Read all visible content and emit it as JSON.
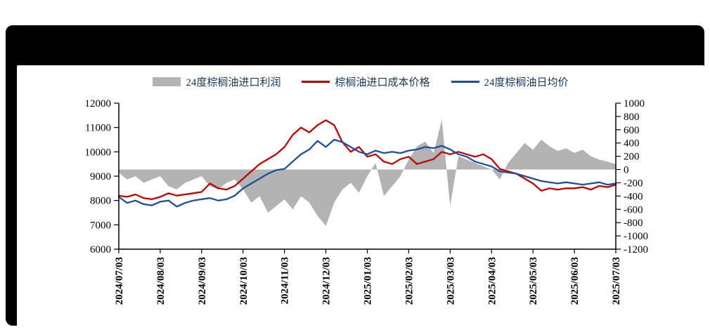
{
  "colors": {
    "profit_gray": "#b3b3b3",
    "cost_red": "#c00000",
    "daily_blue": "#1f4e9b",
    "legend_text": "#17365d",
    "axis": "#000000"
  },
  "legend": [
    {
      "label": "24度棕榈油进口利润",
      "type": "area",
      "color": "#b3b3b3"
    },
    {
      "label": "棕榈油进口成本价格",
      "type": "line",
      "color": "#c00000"
    },
    {
      "label": "24度棕榈油日均价",
      "type": "line",
      "color": "#1f4e9b"
    }
  ],
  "chart_data": {
    "type": "mixed",
    "title": "",
    "x_tick_labels": [
      "2024/07/03",
      "2024/08/03",
      "2024/09/03",
      "2024/10/03",
      "2024/11/03",
      "2024/12/03",
      "2025/01/03",
      "2025/02/03",
      "2025/03/03",
      "2025/04/03",
      "2025/05/03",
      "2025/06/03",
      "2025/07/03"
    ],
    "x_tick_indices": [
      0,
      5,
      10,
      15,
      20,
      25,
      30,
      35,
      40,
      45,
      50,
      55,
      60
    ],
    "axes": {
      "left": {
        "min": 6000,
        "max": 12000,
        "step": 1000
      },
      "right": {
        "min": -1200,
        "max": 1000,
        "step": 200
      }
    },
    "y_left_ticks": [
      12000,
      11000,
      10000,
      9000,
      8000,
      7000,
      6000
    ],
    "y_right_ticks": [
      1000,
      800,
      600,
      400,
      200,
      0,
      -200,
      -400,
      -600,
      -800,
      -1000,
      -1200
    ],
    "grid": false,
    "legend_position": "top-center",
    "series": [
      {
        "name": "24度棕榈油进口利润",
        "type": "area",
        "axis": "right",
        "color": "#b3b3b3",
        "values": [
          -50,
          -150,
          -100,
          -200,
          -150,
          -100,
          -250,
          -300,
          -200,
          -150,
          -100,
          -250,
          -300,
          -200,
          -150,
          -300,
          -500,
          -400,
          -650,
          -550,
          -450,
          -600,
          -400,
          -500,
          -700,
          -850,
          -500,
          -300,
          -200,
          -350,
          -100,
          100,
          -400,
          -250,
          -100,
          150,
          350,
          420,
          250,
          750,
          -550,
          200,
          150,
          100,
          50,
          0,
          -150,
          100,
          250,
          400,
          300,
          450,
          350,
          280,
          320,
          250,
          300,
          200,
          150,
          120,
          80
        ]
      },
      {
        "name": "棕榈油进口成本价格",
        "type": "line",
        "axis": "left",
        "color": "#c00000",
        "values": [
          8200,
          8150,
          8250,
          8100,
          8050,
          8150,
          8300,
          8200,
          8250,
          8300,
          8350,
          8700,
          8500,
          8450,
          8600,
          8900,
          9200,
          9500,
          9700,
          9900,
          10200,
          10700,
          11000,
          10800,
          11100,
          11300,
          11100,
          10400,
          10000,
          10200,
          9800,
          9900,
          9600,
          9500,
          9700,
          9800,
          9500,
          9600,
          9700,
          10000,
          9900,
          10000,
          9900,
          9800,
          9900,
          9700,
          9300,
          9200,
          9100,
          8900,
          8700,
          8400,
          8500,
          8450,
          8500,
          8500,
          8550,
          8450,
          8600,
          8550,
          8650
        ]
      },
      {
        "name": "24度棕榈油日均价",
        "type": "line",
        "axis": "left",
        "color": "#1f4e9b",
        "values": [
          8150,
          7900,
          8000,
          7850,
          7800,
          7950,
          8000,
          7750,
          7900,
          8000,
          8050,
          8100,
          8000,
          8050,
          8200,
          8500,
          8700,
          8900,
          9100,
          9250,
          9300,
          9600,
          9900,
          10100,
          10450,
          10200,
          10500,
          10400,
          10200,
          10000,
          9900,
          10050,
          9950,
          10000,
          9950,
          10050,
          10100,
          10200,
          10150,
          10250,
          10100,
          9900,
          9800,
          9600,
          9500,
          9400,
          9200,
          9150,
          9100,
          9000,
          8900,
          8800,
          8750,
          8700,
          8750,
          8700,
          8650,
          8700,
          8750,
          8650,
          8700
        ]
      }
    ]
  }
}
